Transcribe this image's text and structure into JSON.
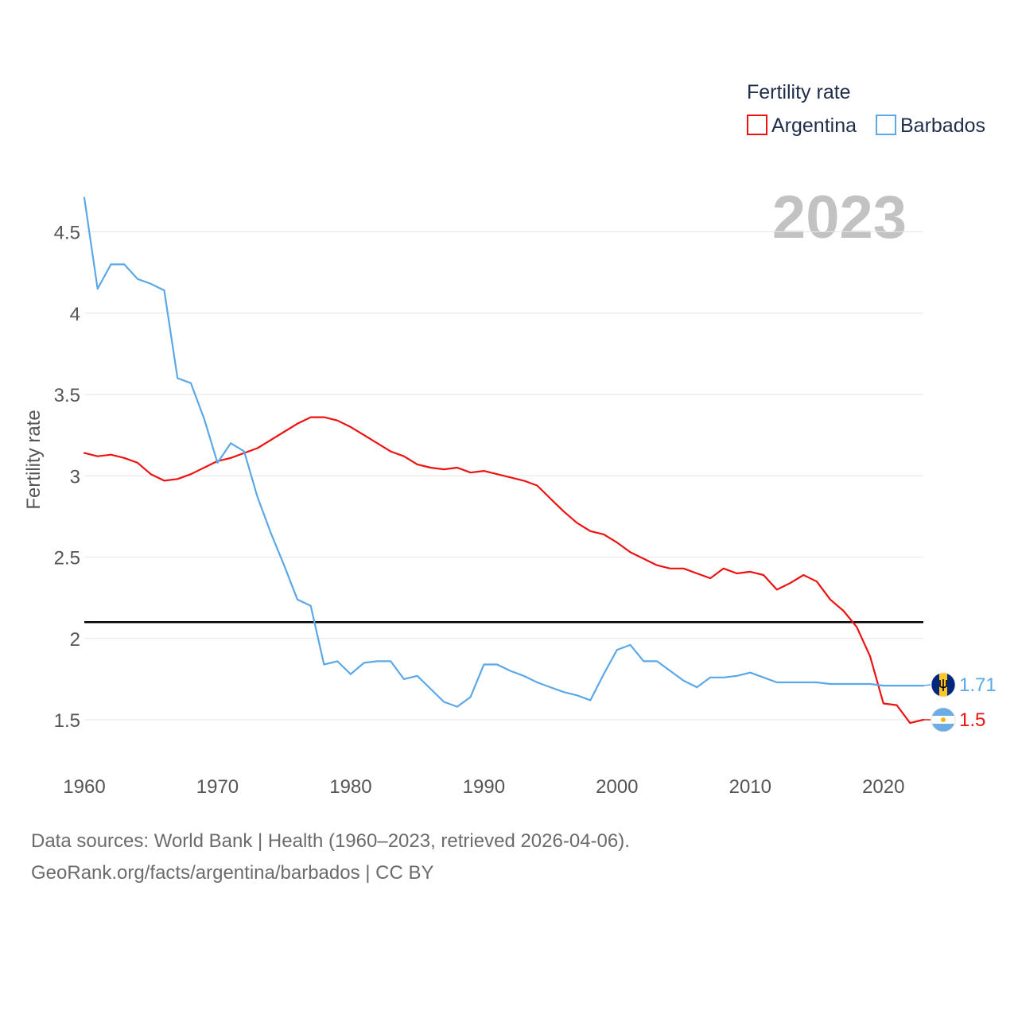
{
  "chart_data": {
    "type": "line",
    "legend_title": "Fertility rate",
    "legend_position": "top-right",
    "ylabel": "Fertility rate",
    "xlabel": "",
    "current_year": "2023",
    "xlim": [
      1960,
      2023
    ],
    "ylim": [
      1.25,
      4.75
    ],
    "x_ticks": [
      1960,
      1970,
      1980,
      1990,
      2000,
      2010,
      2020
    ],
    "y_ticks": [
      1.5,
      2,
      2.5,
      3,
      3.5,
      4,
      4.5
    ],
    "y_tick_labels": [
      "1.5",
      "2",
      "2.5",
      "3",
      "3.5",
      "4",
      "4.5"
    ],
    "reference_line": {
      "y": 2.1,
      "color": "#000000"
    },
    "grid": true,
    "x": [
      1960,
      1961,
      1962,
      1963,
      1964,
      1965,
      1966,
      1967,
      1968,
      1969,
      1970,
      1971,
      1972,
      1973,
      1974,
      1975,
      1976,
      1977,
      1978,
      1979,
      1980,
      1981,
      1982,
      1983,
      1984,
      1985,
      1986,
      1987,
      1988,
      1989,
      1990,
      1991,
      1992,
      1993,
      1994,
      1995,
      1996,
      1997,
      1998,
      1999,
      2000,
      2001,
      2002,
      2003,
      2004,
      2005,
      2006,
      2007,
      2008,
      2009,
      2010,
      2011,
      2012,
      2013,
      2014,
      2015,
      2016,
      2017,
      2018,
      2019,
      2020,
      2021,
      2022,
      2023
    ],
    "series": [
      {
        "name": "Argentina",
        "color": "#ee1111",
        "end_label": "1.5",
        "flag_icon": "argentina-flag-icon",
        "values": [
          3.14,
          3.12,
          3.13,
          3.11,
          3.08,
          3.01,
          2.97,
          2.98,
          3.01,
          3.05,
          3.09,
          3.11,
          3.14,
          3.17,
          3.22,
          3.27,
          3.32,
          3.36,
          3.36,
          3.34,
          3.3,
          3.25,
          3.2,
          3.15,
          3.12,
          3.07,
          3.05,
          3.04,
          3.05,
          3.02,
          3.03,
          3.01,
          2.99,
          2.97,
          2.94,
          2.86,
          2.78,
          2.71,
          2.66,
          2.64,
          2.59,
          2.53,
          2.49,
          2.45,
          2.43,
          2.43,
          2.4,
          2.37,
          2.43,
          2.4,
          2.41,
          2.39,
          2.3,
          2.34,
          2.39,
          2.35,
          2.24,
          2.17,
          2.07,
          1.89,
          1.6,
          1.59,
          1.48,
          1.5
        ]
      },
      {
        "name": "Barbados",
        "color": "#5ba8e8",
        "end_label": "1.71",
        "flag_icon": "barbados-flag-icon",
        "values": [
          4.71,
          4.15,
          4.3,
          4.3,
          4.21,
          4.18,
          4.14,
          3.6,
          3.57,
          3.35,
          3.08,
          3.2,
          3.15,
          2.87,
          2.65,
          2.45,
          2.24,
          2.2,
          1.84,
          1.86,
          1.78,
          1.85,
          1.86,
          1.86,
          1.75,
          1.77,
          1.69,
          1.61,
          1.58,
          1.64,
          1.84,
          1.84,
          1.8,
          1.77,
          1.73,
          1.7,
          1.67,
          1.65,
          1.62,
          1.78,
          1.93,
          1.96,
          1.86,
          1.86,
          1.8,
          1.74,
          1.7,
          1.76,
          1.76,
          1.77,
          1.79,
          1.76,
          1.73,
          1.73,
          1.73,
          1.73,
          1.72,
          1.72,
          1.72,
          1.72,
          1.71,
          1.71,
          1.71,
          1.71
        ]
      }
    ]
  },
  "footer": {
    "sources": "Data sources: World Bank | Health (1960–2023, retrieved 2026-04-06).",
    "attribution": "GeoRank.org/facts/argentina/barbados | CC BY"
  }
}
